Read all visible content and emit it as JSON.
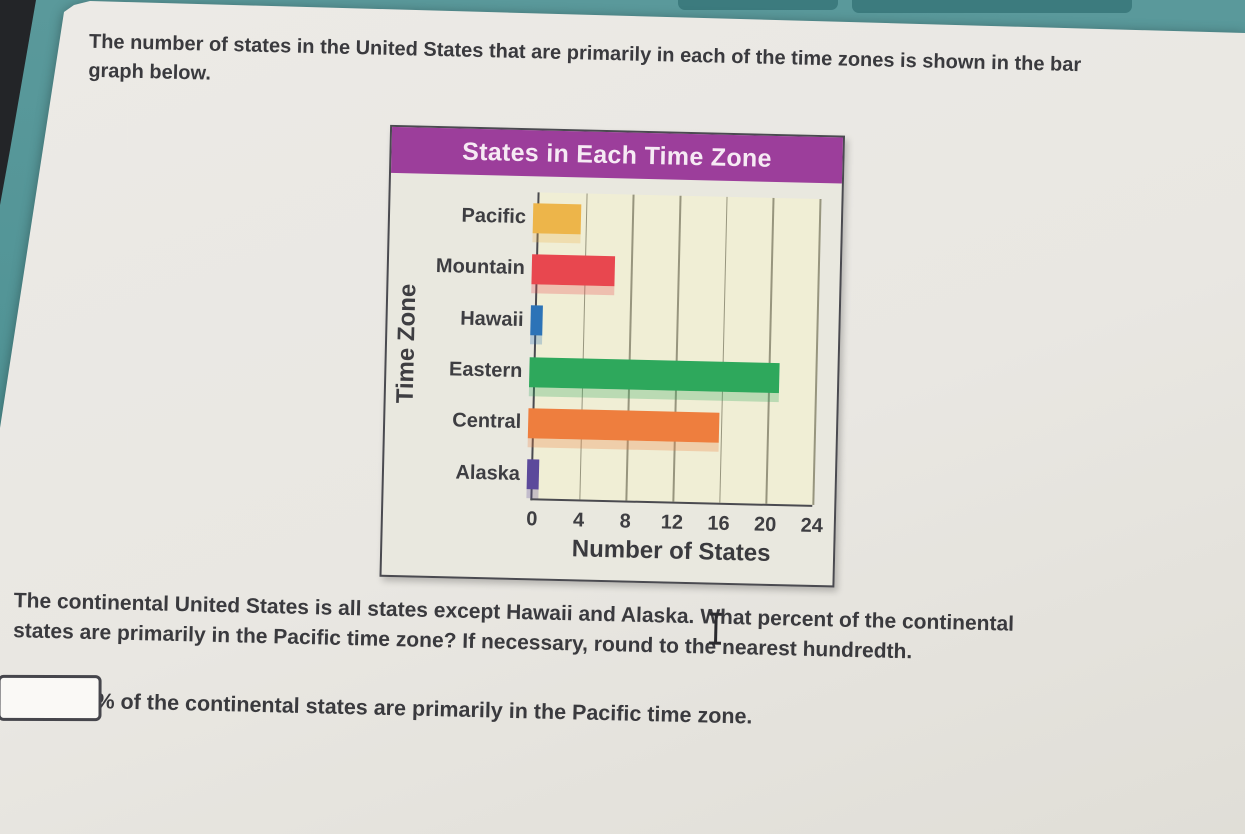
{
  "page": {
    "intro_lines": [
      "The number of states in the United States that are primarily in each of the time zones is shown in the bar",
      "graph below."
    ],
    "question_lines": [
      "The continental United States is all states except Hawaii and Alaska. What percent of the continental",
      "states are primarily in the Pacific time zone? If necessary, round to the nearest hundredth."
    ],
    "answer_suffix": "% of the continental states are primarily in the Pacific time zone."
  },
  "answer_input": {
    "value": "",
    "placeholder": ""
  },
  "chart_data": {
    "type": "bar",
    "orientation": "horizontal",
    "title": "States in Each Time Zone",
    "categories": [
      "Pacific",
      "Mountain",
      "Hawaii",
      "Eastern",
      "Central",
      "Alaska"
    ],
    "values": [
      4,
      7,
      1,
      21,
      16,
      1
    ],
    "colors": [
      "#EDB54A",
      "#E8474F",
      "#2C73B7",
      "#2EA85C",
      "#EE7E3E",
      "#5C4A9B"
    ],
    "xlabel": "Number of States",
    "ylabel": "Time Zone",
    "xlim": [
      0,
      24
    ],
    "x_ticks": [
      0,
      4,
      8,
      12,
      16,
      20,
      24
    ],
    "grid": true,
    "legend": "none",
    "title_bg": "#9C3E9B",
    "plot_bg": "#F0EED5"
  },
  "theme": {
    "desktop_teal": "#4E9294",
    "panel_gray": "#E9E7E2",
    "text": "#3A3A3E",
    "chart_border": "#4A4A50",
    "gridline": "#97957E"
  }
}
